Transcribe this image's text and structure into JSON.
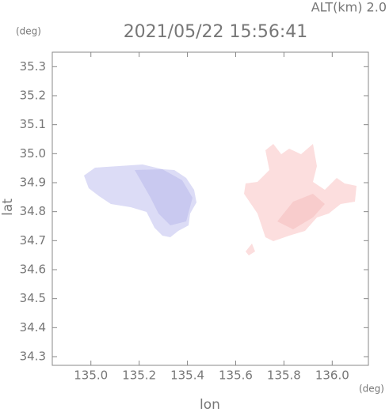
{
  "chart_data": {
    "type": "map",
    "title": "2021/05/22 15:56:41",
    "altitude_label": "ALT(km)  2.0",
    "y_unit": "(deg)",
    "x_unit": "(deg)",
    "xlabel": "lon",
    "ylabel": "lat",
    "xlim": [
      134.84,
      136.15
    ],
    "ylim": [
      34.27,
      35.35
    ],
    "xticks": [
      {
        "value": 135,
        "label": "135.0"
      },
      135.2,
      135.4,
      135.6,
      135.8,
      {
        "value": 136,
        "label": "136.0"
      }
    ],
    "yticks": [
      34.3,
      34.4,
      34.5,
      34.6,
      34.7,
      34.8,
      34.9,
      {
        "value": 35,
        "label": "35.0"
      },
      35.1,
      35.2,
      35.3
    ]
  }
}
